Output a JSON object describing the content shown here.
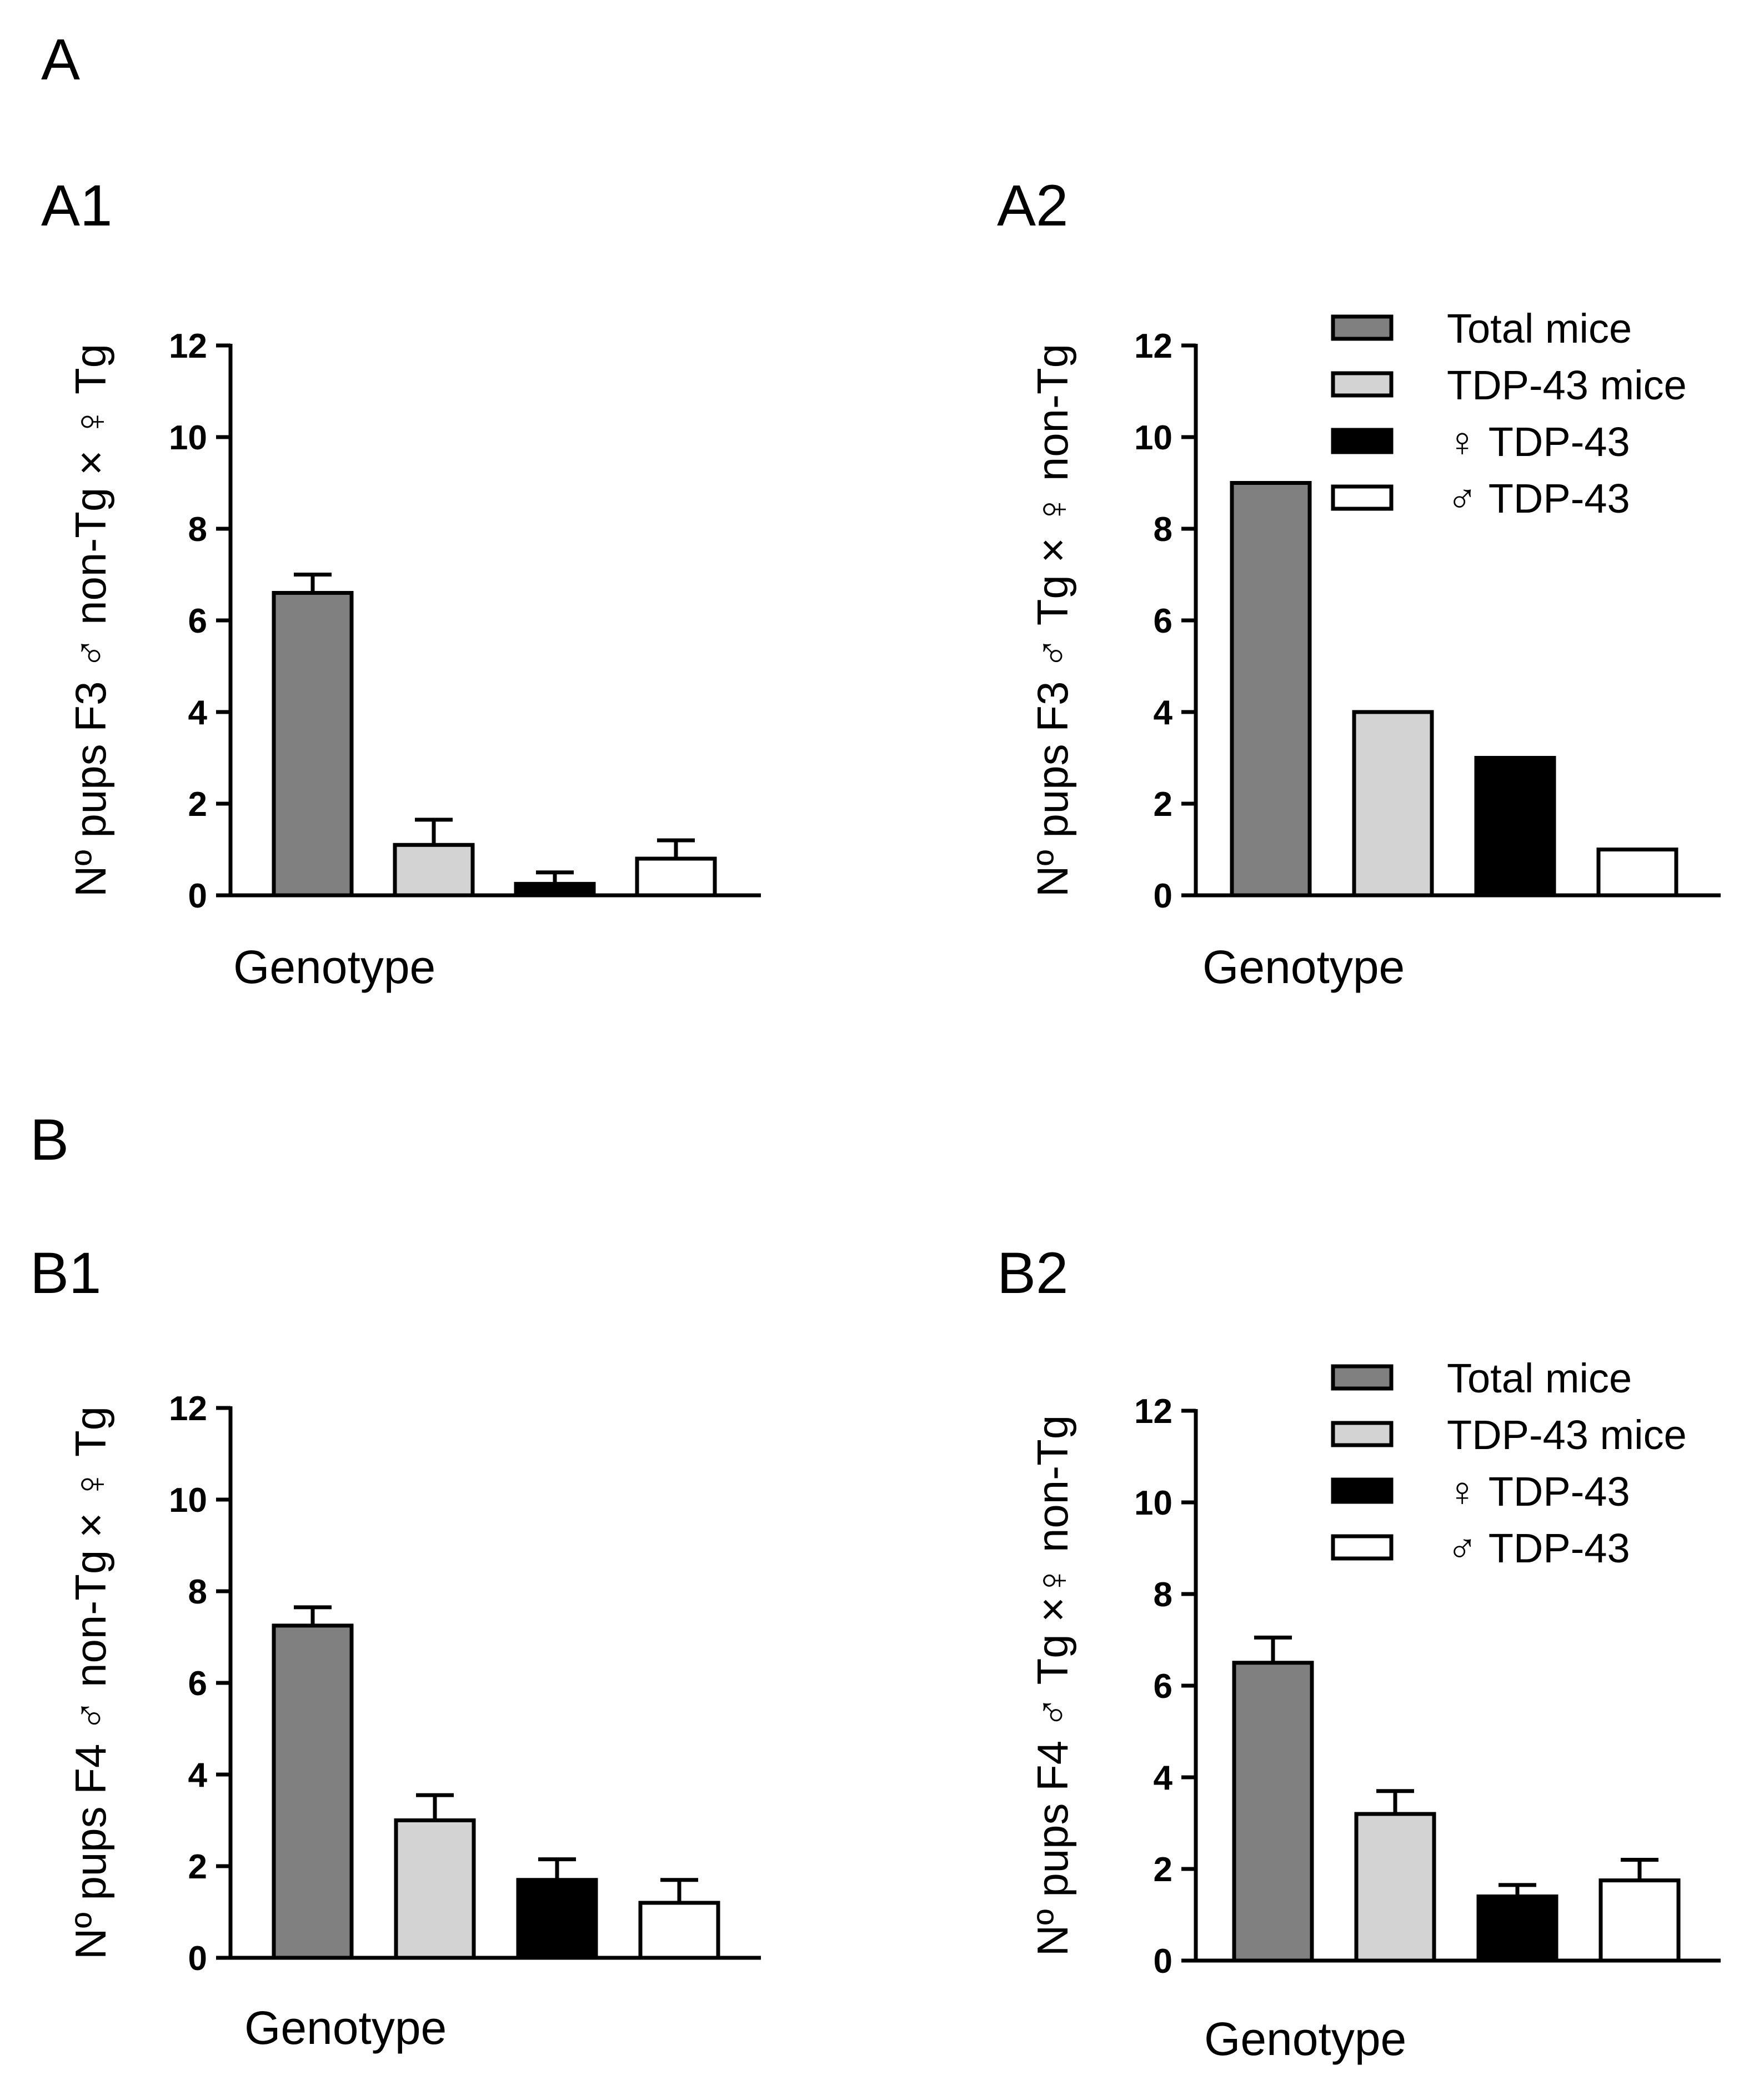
{
  "figure": {
    "section_a": "A",
    "section_b": "B"
  },
  "legend": {
    "items": [
      {
        "label": "Total mice",
        "color": "#808080"
      },
      {
        "label": "TDP-43 mice",
        "color": "#d3d3d3"
      },
      {
        "label": "♀ TDP-43",
        "color": "#000000"
      },
      {
        "label": "♂ TDP-43",
        "color": "#ffffff"
      }
    ]
  },
  "chart_data": [
    {
      "id": "A1",
      "type": "bar",
      "panel_label": "A1",
      "title": "",
      "xlabel": "Genotype",
      "ylabel": "Nº pups F3 ♂ non-Tg × ♀ Tg",
      "ylim": [
        0,
        12
      ],
      "yticks": [
        "0",
        "2",
        "4",
        "6",
        "8",
        "10",
        "12"
      ],
      "categories": [
        "Total mice",
        "TDP-43 mice",
        "♀ TDP-43",
        "♂ TDP-43"
      ],
      "values": [
        6.6,
        1.1,
        0.25,
        0.8
      ],
      "errors": [
        0.4,
        0.55,
        0.25,
        0.4
      ],
      "legend": false
    },
    {
      "id": "A2",
      "type": "bar",
      "panel_label": "A2",
      "title": "",
      "xlabel": "Genotype",
      "ylabel": "Nº pups F3 ♂ Tg × ♀ non-Tg",
      "ylim": [
        0,
        12
      ],
      "yticks": [
        "0",
        "2",
        "4",
        "6",
        "8",
        "10",
        "12"
      ],
      "categories": [
        "Total mice",
        "TDP-43 mice",
        "♀ TDP-43",
        "♂ TDP-43"
      ],
      "values": [
        9,
        4,
        3,
        1
      ],
      "errors": [
        0,
        0,
        0,
        0
      ],
      "legend": true
    },
    {
      "id": "B1",
      "type": "bar",
      "panel_label": "B1",
      "title": "",
      "xlabel": "Genotype",
      "ylabel": "Nº pups F4 ♂ non-Tg × ♀ Tg",
      "ylim": [
        0,
        12
      ],
      "yticks": [
        "0",
        "2",
        "4",
        "6",
        "8",
        "10",
        "12"
      ],
      "categories": [
        "Total mice",
        "TDP-43 mice",
        "♀ TDP-43",
        "♂ TDP-43"
      ],
      "values": [
        7.25,
        3.0,
        1.7,
        1.2
      ],
      "errors": [
        0.4,
        0.55,
        0.45,
        0.5
      ],
      "legend": false
    },
    {
      "id": "B2",
      "type": "bar",
      "panel_label": "B2",
      "title": "",
      "xlabel": "Genotype",
      "ylabel": "Nº pups F4 ♂ Tg ×♀ non-Tg",
      "ylim": [
        0,
        12
      ],
      "yticks": [
        "0",
        "2",
        "4",
        "6",
        "8",
        "10",
        "12"
      ],
      "categories": [
        "Total mice",
        "TDP-43 mice",
        "♀ TDP-43",
        "♂ TDP-43"
      ],
      "values": [
        6.5,
        3.2,
        1.4,
        1.75
      ],
      "errors": [
        0.55,
        0.5,
        0.25,
        0.45
      ],
      "legend": true
    }
  ]
}
